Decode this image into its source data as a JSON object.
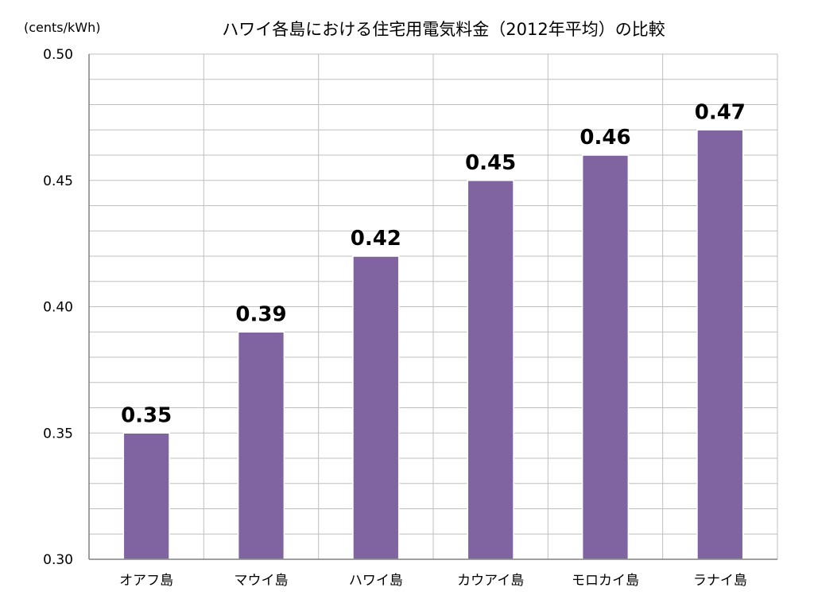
{
  "chart_data": {
    "type": "bar",
    "title": "ハワイ各島における住宅用電気料金（2012年平均）の比較",
    "ylabel": "(cents/kWh)",
    "xlabel": "",
    "categories": [
      "オアフ島",
      "マウイ島",
      "ハワイ島",
      "カウアイ島",
      "モロカイ島",
      "ラナイ島"
    ],
    "values": [
      0.35,
      0.39,
      0.42,
      0.45,
      0.46,
      0.47
    ],
    "data_labels": [
      "0.35",
      "0.39",
      "0.42",
      "0.45",
      "0.46",
      "0.47"
    ],
    "ylim": [
      0.3,
      0.5
    ],
    "yticks": [
      "0.30",
      "0.35",
      "0.40",
      "0.45",
      "0.50"
    ],
    "minor_grid_step": 0.01,
    "grid": true,
    "legend": "none",
    "colors": {
      "bar": "#8064A2",
      "bar_border": "#ffffff",
      "grid": "#bfbfbf",
      "axis": "#808080"
    }
  }
}
